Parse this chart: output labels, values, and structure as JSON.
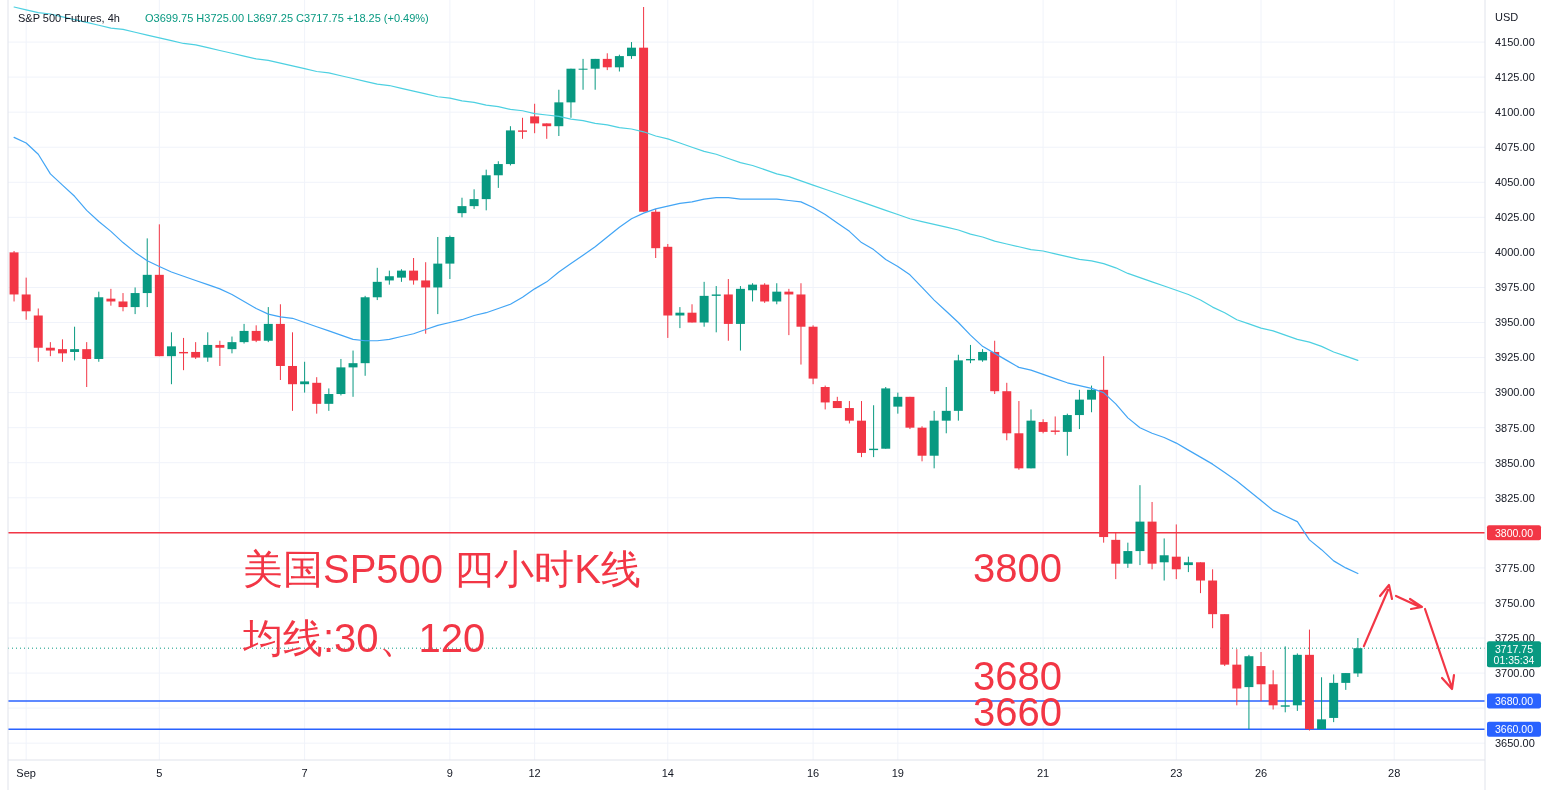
{
  "chart_data": {
    "type": "candlestick",
    "title": "S&P 500 Futures, 4h",
    "ylabel": "USD",
    "categories": [
      null,
      "Sep",
      null,
      null,
      null,
      null,
      null,
      null,
      null,
      null,
      null,
      null,
      "5",
      null,
      null,
      null,
      null,
      null,
      null,
      null,
      null,
      null,
      null,
      null,
      "7",
      null,
      null,
      null,
      null,
      null,
      null,
      null,
      null,
      null,
      null,
      null,
      "9",
      null,
      null,
      null,
      null,
      null,
      null,
      "12",
      null,
      null,
      null,
      null,
      null,
      null,
      null,
      null,
      null,
      null,
      "14",
      null,
      null,
      null,
      null,
      null,
      null,
      null,
      null,
      null,
      null,
      null,
      "16",
      null,
      null,
      null,
      null,
      null,
      null,
      "19",
      null,
      null,
      null,
      null,
      null,
      null,
      null,
      null,
      null,
      null,
      null,
      "21",
      null,
      null,
      null,
      null,
      null,
      null,
      null,
      null,
      null,
      null,
      "23",
      null,
      null,
      null,
      null,
      null,
      null,
      "26",
      null,
      null,
      null,
      null,
      null,
      null,
      null,
      null,
      null,
      null,
      "28",
      null,
      null,
      null,
      null,
      null,
      null,
      null
    ],
    "ohlc": [
      [
        4000,
        4001,
        3965,
        3970
      ],
      [
        3970,
        3982,
        3952,
        3958
      ],
      [
        3955,
        3960,
        3922,
        3932
      ],
      [
        3932,
        3936,
        3926,
        3930
      ],
      [
        3931,
        3938,
        3922,
        3928
      ],
      [
        3929,
        3947,
        3923,
        3931
      ],
      [
        3931,
        3936,
        3904,
        3924
      ],
      [
        3924,
        3972,
        3922,
        3968
      ],
      [
        3967,
        3974,
        3962,
        3965
      ],
      [
        3965,
        3971,
        3958,
        3961
      ],
      [
        3961,
        3975,
        3956,
        3971
      ],
      [
        3971,
        4010,
        3961,
        3984
      ],
      [
        3984,
        4020,
        3926,
        3926
      ],
      [
        3926,
        3943,
        3906,
        3933
      ],
      [
        3929,
        3939,
        3916,
        3928
      ],
      [
        3929,
        3936,
        3924,
        3925
      ],
      [
        3925,
        3943,
        3922,
        3934
      ],
      [
        3934,
        3937,
        3919,
        3932
      ],
      [
        3931,
        3940,
        3928,
        3936
      ],
      [
        3936,
        3949,
        3935,
        3944
      ],
      [
        3944,
        3948,
        3936,
        3937
      ],
      [
        3937,
        3961,
        3936,
        3949
      ],
      [
        3949,
        3963,
        3909,
        3919
      ],
      [
        3919,
        3943,
        3887,
        3906
      ],
      [
        3906,
        3922,
        3900,
        3908
      ],
      [
        3907,
        3911,
        3885,
        3892
      ],
      [
        3892,
        3903,
        3887,
        3899
      ],
      [
        3899,
        3924,
        3898,
        3918
      ],
      [
        3918,
        3930,
        3897,
        3921
      ],
      [
        3921,
        3969,
        3912,
        3968
      ],
      [
        3968,
        3989,
        3966,
        3979
      ],
      [
        3980,
        3987,
        3977,
        3983
      ],
      [
        3982,
        3988,
        3979,
        3987
      ],
      [
        3987,
        3996,
        3977,
        3980
      ],
      [
        3980,
        3993,
        3942,
        3975
      ],
      [
        3975,
        4011,
        3956,
        3992
      ],
      [
        3992,
        4012,
        3981,
        4011
      ],
      [
        4028,
        4039,
        4025,
        4033
      ],
      [
        4033,
        4045,
        4031,
        4038
      ],
      [
        4038,
        4059,
        4030,
        4055
      ],
      [
        4055,
        4065,
        4046,
        4063
      ],
      [
        4063,
        4090,
        4062,
        4087
      ],
      [
        4087,
        4096,
        4081,
        4086
      ],
      [
        4097,
        4106,
        4085,
        4092
      ],
      [
        4092,
        4092,
        4081,
        4090
      ],
      [
        4090,
        4116,
        4083,
        4107
      ],
      [
        4107,
        4131,
        4096,
        4131
      ],
      [
        4131,
        4138,
        4116,
        4131
      ],
      [
        4131,
        4138,
        4116,
        4138
      ],
      [
        4138,
        4142,
        4130,
        4132
      ],
      [
        4132,
        4141,
        4129,
        4140
      ],
      [
        4140,
        4150,
        4138,
        4146
      ],
      [
        4146,
        4175,
        4029,
        4029
      ],
      [
        4029,
        4031,
        3996,
        4003
      ],
      [
        4004,
        4006,
        3939,
        3955
      ],
      [
        3955,
        3961,
        3946,
        3957
      ],
      [
        3957,
        3963,
        3950,
        3950
      ],
      [
        3950,
        3979,
        3947,
        3969
      ],
      [
        3969,
        3976,
        3943,
        3970
      ],
      [
        3970,
        3981,
        3937,
        3949
      ],
      [
        3949,
        3976,
        3930,
        3974
      ],
      [
        3973,
        3978,
        3965,
        3977
      ],
      [
        3977,
        3978,
        3964,
        3965
      ],
      [
        3965,
        3978,
        3963,
        3972
      ],
      [
        3972,
        3974,
        3941,
        3970
      ],
      [
        3970,
        3978,
        3920,
        3947
      ],
      [
        3947,
        3948,
        3906,
        3910
      ],
      [
        3904,
        3905,
        3888,
        3893
      ],
      [
        3894,
        3897,
        3889,
        3889
      ],
      [
        3889,
        3894,
        3878,
        3880
      ],
      [
        3880,
        3894,
        3854,
        3857
      ],
      [
        3859,
        3891,
        3854,
        3860
      ],
      [
        3860,
        3904,
        3860,
        3903
      ],
      [
        3890,
        3900,
        3885,
        3897
      ],
      [
        3897,
        3897,
        3874,
        3875
      ],
      [
        3875,
        3876,
        3851,
        3855
      ],
      [
        3855,
        3887,
        3846,
        3880
      ],
      [
        3880,
        3904,
        3871,
        3887
      ],
      [
        3887,
        3927,
        3880,
        3923
      ],
      [
        3923,
        3934,
        3921,
        3924
      ],
      [
        3923,
        3931,
        3922,
        3929
      ],
      [
        3929,
        3937,
        3899,
        3901
      ],
      [
        3901,
        3907,
        3866,
        3871
      ],
      [
        3871,
        3894,
        3845,
        3846
      ],
      [
        3846,
        3888,
        3846,
        3880
      ],
      [
        3879,
        3881,
        3871,
        3872
      ],
      [
        3873,
        3883,
        3870,
        3872
      ],
      [
        3872,
        3885,
        3855,
        3884
      ],
      [
        3884,
        3902,
        3874,
        3895
      ],
      [
        3895,
        3905,
        3886,
        3902
      ],
      [
        3902,
        3926,
        3793,
        3797
      ],
      [
        3795,
        3800,
        3767,
        3778
      ],
      [
        3778,
        3793,
        3775,
        3787
      ],
      [
        3787,
        3834,
        3777,
        3808
      ],
      [
        3808,
        3822,
        3774,
        3778
      ],
      [
        3779,
        3796,
        3766,
        3784
      ],
      [
        3783,
        3806,
        3767,
        3774
      ],
      [
        3777,
        3783,
        3772,
        3779
      ],
      [
        3779,
        3779,
        3757,
        3766
      ],
      [
        3766,
        3774,
        3732,
        3742
      ],
      [
        3742,
        3742,
        3705,
        3706
      ],
      [
        3706,
        3717,
        3677,
        3689
      ],
      [
        3690,
        3713,
        3660,
        3712
      ],
      [
        3705,
        3715,
        3680,
        3692
      ],
      [
        3692,
        3702,
        3674,
        3677
      ],
      [
        3676,
        3719,
        3672,
        3677
      ],
      [
        3677,
        3714,
        3673,
        3713
      ],
      [
        3713,
        3731,
        3659,
        3660
      ],
      [
        3660,
        3697,
        3660,
        3667
      ],
      [
        3668,
        3699,
        3665,
        3693
      ],
      [
        3693,
        3700,
        3688,
        3700
      ],
      [
        3699.75,
        3725,
        3697.25,
        3717.75
      ],
      null,
      null,
      null,
      null,
      null,
      null,
      null,
      null,
      null,
      null
    ],
    "colors": [
      "#f23645",
      "#f23645",
      "#f23645",
      "#f23645",
      "#f23645",
      "#089981",
      "#f23645",
      "#089981",
      "#f23645",
      "#f23645",
      "#089981",
      "#089981",
      "#f23645",
      "#089981",
      "#f23645",
      "#f23645",
      "#089981",
      "#f23645",
      "#089981",
      "#089981",
      "#f23645",
      "#089981",
      "#f23645",
      "#f23645",
      "#089981",
      "#f23645",
      "#089981",
      "#089981",
      "#089981",
      "#089981",
      "#089981",
      "#089981",
      "#089981",
      "#f23645",
      "#f23645",
      "#089981",
      "#089981",
      "#089981",
      "#089981",
      "#089981",
      "#089981",
      "#089981",
      "#f23645",
      "#f23645",
      "#f23645",
      "#089981",
      "#089981",
      "#089981",
      "#089981",
      "#f23645",
      "#089981",
      "#089981",
      "#f23645",
      "#f23645",
      "#f23645",
      "#089981",
      "#f23645",
      "#089981",
      "#089981",
      "#f23645",
      "#089981",
      "#089981",
      "#f23645",
      "#089981",
      "#f23645",
      "#f23645",
      "#f23645",
      "#f23645",
      "#f23645",
      "#f23645",
      "#f23645",
      "#089981",
      "#089981",
      "#089981",
      "#f23645",
      "#f23645",
      "#089981",
      "#089981",
      "#089981",
      "#089981",
      "#089981",
      "#f23645",
      "#f23645",
      "#f23645",
      "#089981",
      "#f23645",
      "#f23645",
      "#089981",
      "#089981",
      "#089981",
      "#f23645",
      "#f23645",
      "#089981",
      "#089981",
      "#f23645",
      "#089981",
      "#f23645",
      "#089981",
      "#f23645",
      "#f23645",
      "#f23645",
      "#f23645",
      "#089981",
      "#f23645",
      "#f23645",
      "#089981",
      "#089981",
      "#f23645",
      "#089981",
      "#089981",
      "#089981",
      "#089981",
      null,
      null,
      null,
      null,
      null,
      null,
      null,
      null,
      null,
      null
    ],
    "series": [
      {
        "type": "line",
        "color": "#42a5f5",
        "values": [
          4082,
          4078,
          4070,
          4056,
          4048,
          4040,
          4030,
          4022,
          4015,
          4007,
          4000,
          3994,
          3990,
          3986,
          3983,
          3980,
          3977,
          3974,
          3970,
          3965,
          3960,
          3956,
          3954,
          3953,
          3950,
          3947,
          3944,
          3941,
          3938,
          3937,
          3937,
          3938,
          3940,
          3942,
          3945,
          3948,
          3950,
          3952,
          3955,
          3957,
          3960,
          3963,
          3968,
          3974,
          3979,
          3986,
          3992,
          3998,
          4004,
          4011,
          4018,
          4024,
          4028,
          4031,
          4033,
          4035,
          4036,
          4038,
          4039,
          4039,
          4038,
          4038,
          4038,
          4038,
          4037,
          4036,
          4032,
          4027,
          4021,
          4015,
          4007,
          4002,
          3995,
          3990,
          3984,
          3975,
          3966,
          3958,
          3950,
          3941,
          3933,
          3928,
          3923,
          3918,
          3916,
          3913,
          3910,
          3907,
          3905,
          3903,
          3900,
          3892,
          3882,
          3875,
          3871,
          3868,
          3864,
          3859,
          3854,
          3849,
          3843,
          3837,
          3830,
          3823,
          3816,
          3812,
          3808,
          3795,
          3788,
          3780,
          3775,
          3771,
          null,
          null,
          null,
          null,
          null,
          null,
          null,
          null,
          null,
          null
        ]
      },
      {
        "type": "line",
        "color": "#4dd0e1",
        "values": [
          4175,
          4173,
          4171,
          4170,
          4168,
          4166,
          4164,
          4162,
          4160,
          4159,
          4157,
          4155,
          4153,
          4151,
          4149,
          4148,
          4146,
          4144,
          4142,
          4140,
          4138,
          4137,
          4135,
          4133,
          4131,
          4129,
          4128,
          4126,
          4124,
          4122,
          4120,
          4119,
          4117,
          4115,
          4113,
          4111,
          4110,
          4108,
          4107,
          4105,
          4104,
          4102,
          4101,
          4099,
          4098,
          4097,
          4095,
          4094,
          4092,
          4091,
          4089,
          4088,
          4086,
          4083,
          4081,
          4078,
          4075,
          4072,
          4070,
          4067,
          4064,
          4062,
          4059,
          4056,
          4054,
          4051,
          4048,
          4045,
          4042,
          4039,
          4036,
          4033,
          4030,
          4027,
          4024,
          4022,
          4020,
          4018,
          4016,
          4013,
          4011,
          4008,
          4006,
          4004,
          4002,
          4001,
          3999,
          3997,
          3995,
          3994,
          3992,
          3989,
          3985,
          3982,
          3979,
          3976,
          3973,
          3970,
          3966,
          3961,
          3957,
          3952,
          3949,
          3946,
          3944,
          3941,
          3938,
          3936,
          3933,
          3929,
          3926,
          3923,
          null,
          null,
          null,
          null,
          null,
          null,
          null,
          null,
          null,
          null
        ]
      }
    ],
    "ylim": [
      3638,
      4180
    ],
    "yticks": [
      {
        "value": 3650,
        "label": "3650.00"
      },
      {
        "value": 3675,
        "label": null
      },
      {
        "value": 3700,
        "label": "3700.00"
      },
      {
        "value": 3725,
        "label": "3725.00"
      },
      {
        "value": 3750,
        "label": "3750.00"
      },
      {
        "value": 3775,
        "label": "3775.00"
      },
      {
        "value": 3800,
        "label": null
      },
      {
        "value": 3825,
        "label": "3825.00"
      },
      {
        "value": 3850,
        "label": "3850.00"
      },
      {
        "value": 3875,
        "label": "3875.00"
      },
      {
        "value": 3900,
        "label": "3900.00"
      },
      {
        "value": 3925,
        "label": "3925.00"
      },
      {
        "value": 3950,
        "label": "3950.00"
      },
      {
        "value": 3975,
        "label": "3975.00"
      },
      {
        "value": 4000,
        "label": "4000.00"
      },
      {
        "value": 4025,
        "label": "4025.00"
      },
      {
        "value": 4050,
        "label": "4050.00"
      },
      {
        "value": 4075,
        "label": "4075.00"
      },
      {
        "value": 4100,
        "label": "4100.00"
      },
      {
        "value": 4125,
        "label": "4125.00"
      },
      {
        "value": 4150,
        "label": "4150.00"
      }
    ],
    "grid": true,
    "ref_lines": [
      {
        "axis": "y",
        "value": 3800,
        "label": "3800.00",
        "color": "#f23645"
      },
      {
        "axis": "y",
        "value": 3680,
        "label": "3680.00",
        "color": "#2962ff"
      },
      {
        "axis": "y",
        "value": 3660,
        "label": "3660.00",
        "color": "#2962ff"
      },
      {
        "axis": "y",
        "value": 3717.75,
        "label": "3717.75",
        "color": "#089981",
        "line_style": "dotted"
      }
    ],
    "annotations": [
      "O3699.75 H3725.00 L3697.25 C3717.75 +18.25 (+0.49%)",
      "美国SP500 四小时K线",
      "均线:30、120",
      "3800",
      "3680",
      "3660",
      "01:35:34"
    ]
  }
}
